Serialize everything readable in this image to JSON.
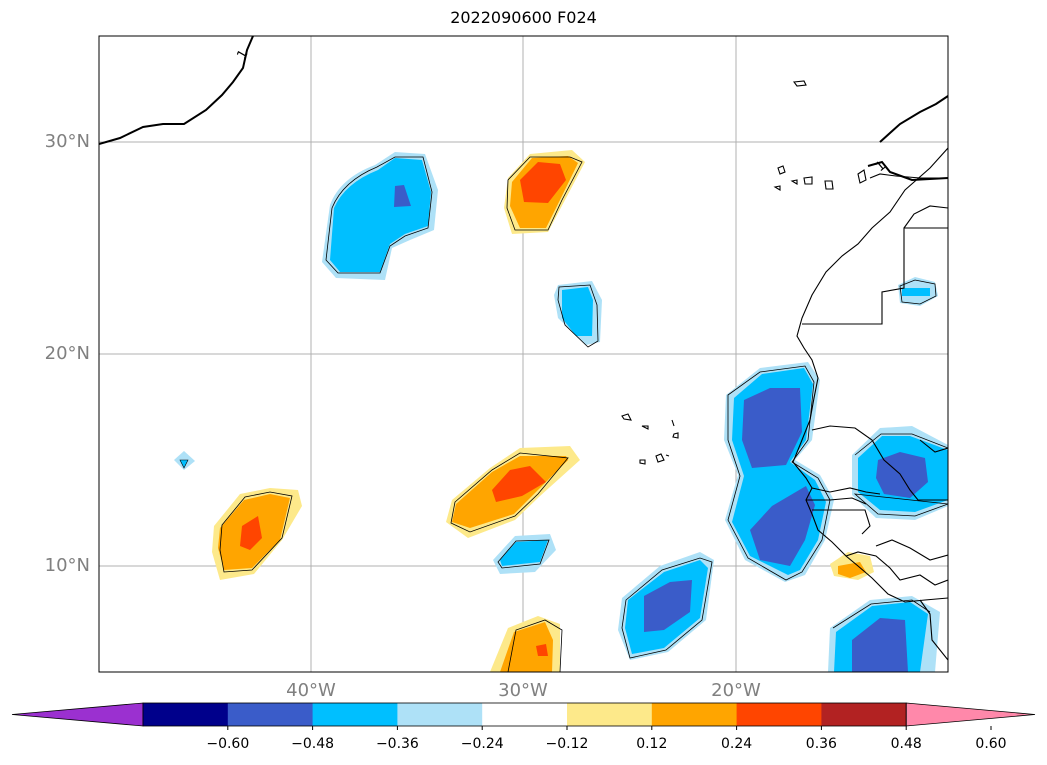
{
  "title": "2022090600 F024",
  "map": {
    "lat_labels": [
      {
        "text": "30°N",
        "lat": 30
      },
      {
        "text": "20°N",
        "lat": 20
      },
      {
        "text": "10°N",
        "lat": 10
      }
    ],
    "lon_labels": [
      {
        "text": "40°W",
        "lon": -40
      },
      {
        "text": "30°W",
        "lon": -30
      },
      {
        "text": "20°W",
        "lon": -20
      }
    ],
    "contour_label": "1",
    "grid": true
  },
  "colorbar": {
    "colors": [
      "#9b30d0",
      "#00008b",
      "#3a5cc9",
      "#00bfff",
      "#aee1f7",
      "#ffffff",
      "#fde98a",
      "#ffa500",
      "#ff4500",
      "#b22222",
      "#ff88aa"
    ],
    "ticks": [
      "−0.60",
      "−0.48",
      "−0.36",
      "−0.24",
      "−0.12",
      "0.12",
      "0.24",
      "0.36",
      "0.48",
      "0.60"
    ],
    "extend": "both"
  }
}
